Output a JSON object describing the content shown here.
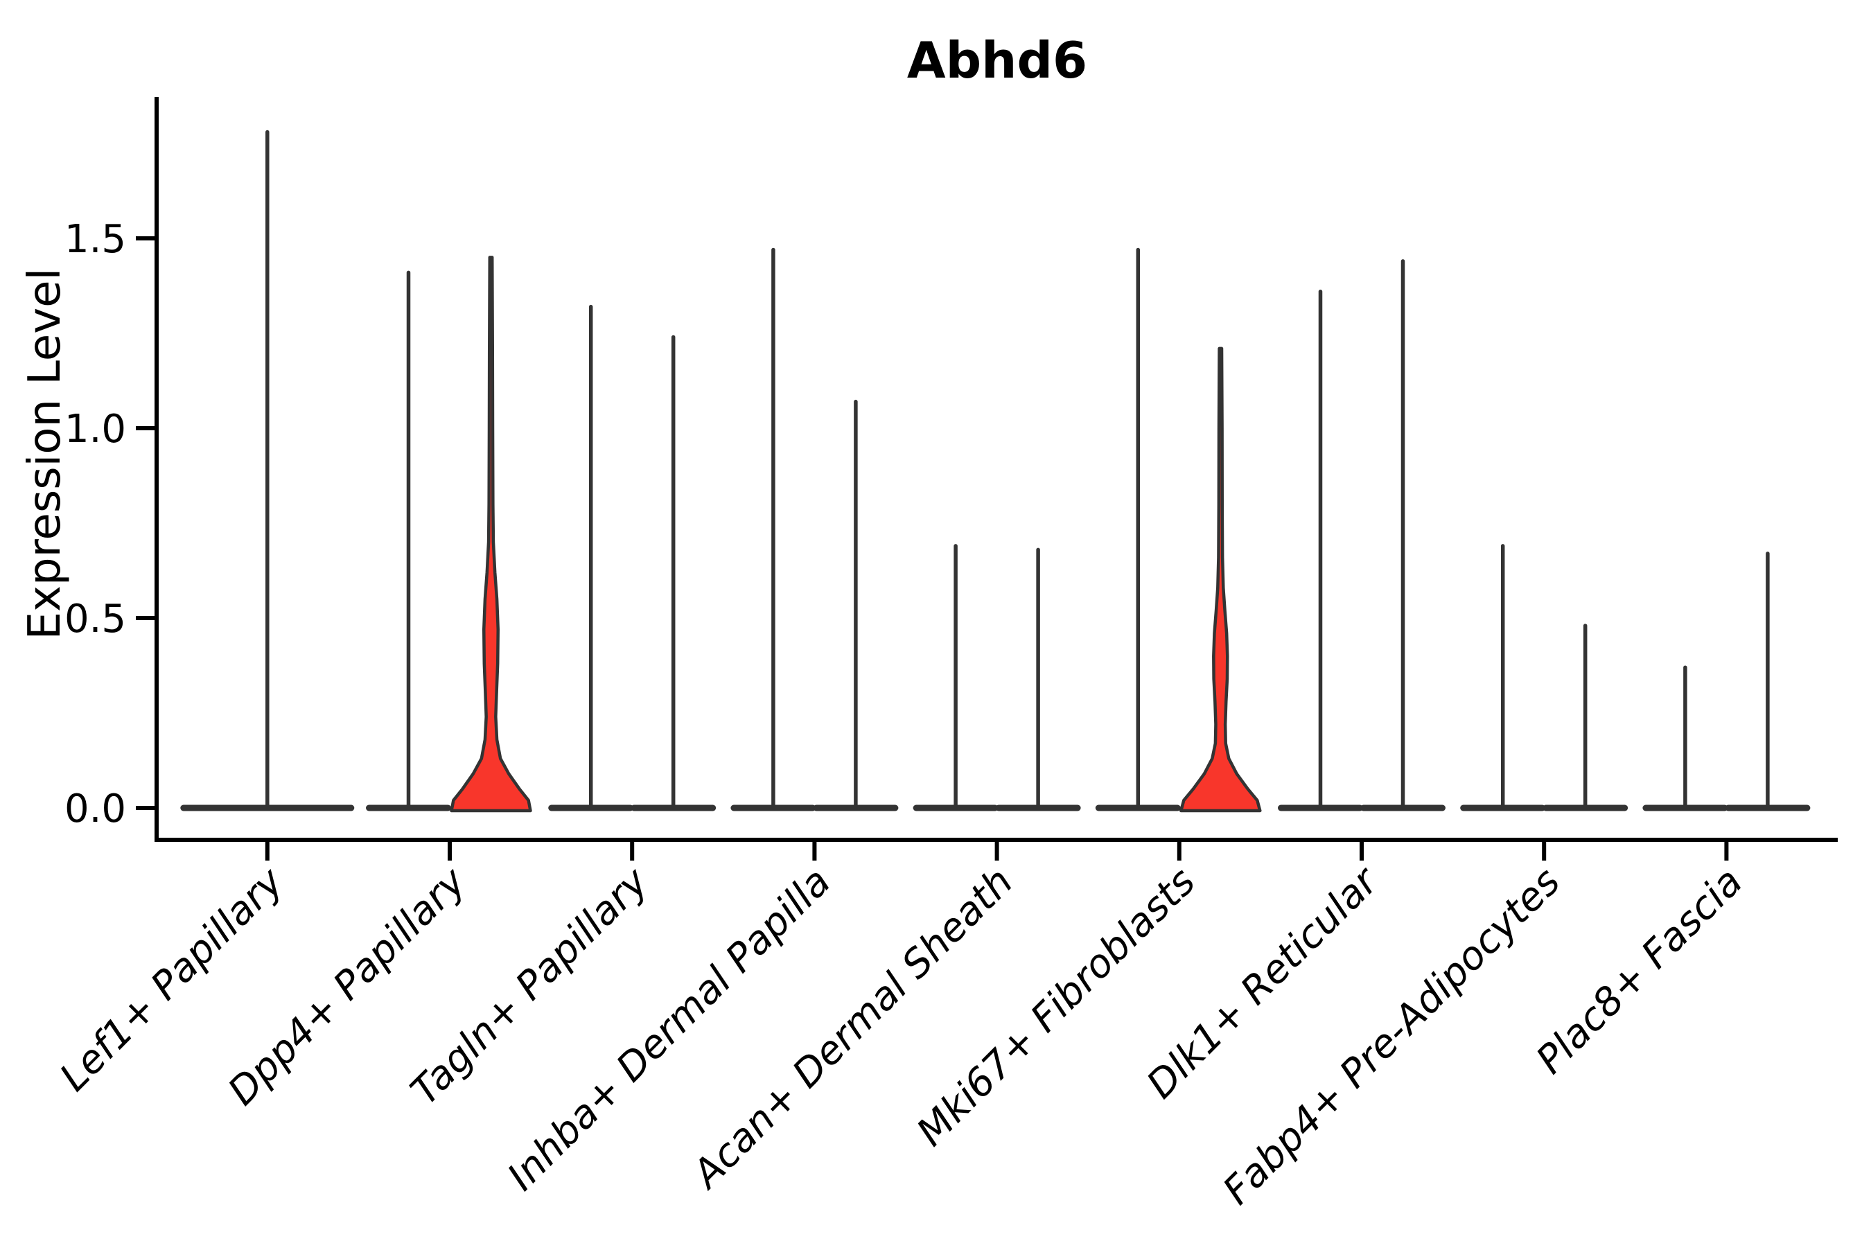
{
  "chart_data": {
    "type": "violin",
    "title": "Abhd6",
    "ylabel": "Expression Level",
    "y_axis": {
      "ticks": [
        {
          "value": 0.0,
          "label": "0.0"
        },
        {
          "value": 0.5,
          "label": "0.5"
        },
        {
          "value": 1.0,
          "label": "1.0"
        },
        {
          "value": 1.5,
          "label": "1.5"
        }
      ],
      "ylim": [
        -0.08,
        1.87
      ],
      "grid": false
    },
    "x_axis": {
      "label_rotation_deg": 45,
      "labels_italic": true
    },
    "legend": "none",
    "colors": {
      "violin_fill": "#F8362B",
      "violin_outline": "#333333",
      "axis": "#000000"
    },
    "categories": [
      {
        "label": "Lef1+ Papillary",
        "violins": [
          {
            "peak": 1.78,
            "style": "spike",
            "width": "full"
          }
        ]
      },
      {
        "label": "Dpp4+ Papillary",
        "violins": [
          {
            "peak": 1.41,
            "style": "spike",
            "width": "half"
          },
          {
            "peak": 1.45,
            "style": "bulge",
            "width": "half",
            "profile": [
              [
                0.0,
                1.0
              ],
              [
                0.02,
                0.95
              ],
              [
                0.05,
                0.72
              ],
              [
                0.09,
                0.45
              ],
              [
                0.13,
                0.24
              ],
              [
                0.18,
                0.15
              ],
              [
                0.24,
                0.12
              ],
              [
                0.3,
                0.14
              ],
              [
                0.38,
                0.17
              ],
              [
                0.47,
                0.18
              ],
              [
                0.55,
                0.15
              ],
              [
                0.62,
                0.1
              ],
              [
                0.7,
                0.06
              ],
              [
                0.8,
                0.05
              ],
              [
                1.0,
                0.044
              ],
              [
                1.2,
                0.04
              ],
              [
                1.45,
                0.03
              ]
            ]
          }
        ]
      },
      {
        "label": "Tagln+ Papillary",
        "violins": [
          {
            "peak": 1.32,
            "style": "spike",
            "width": "half"
          },
          {
            "peak": 1.24,
            "style": "spike",
            "width": "half"
          }
        ]
      },
      {
        "label": "Inhba+ Dermal Papilla",
        "violins": [
          {
            "peak": 1.47,
            "style": "spike",
            "width": "half"
          },
          {
            "peak": 1.07,
            "style": "spike",
            "width": "half"
          }
        ]
      },
      {
        "label": "Acan+ Dermal Sheath",
        "violins": [
          {
            "peak": 0.69,
            "style": "spike",
            "width": "half"
          },
          {
            "peak": 0.68,
            "style": "spike",
            "width": "half"
          }
        ]
      },
      {
        "label": "Mki67+ Fibroblasts",
        "violins": [
          {
            "peak": 1.47,
            "style": "spike",
            "width": "half"
          },
          {
            "peak": 1.21,
            "style": "bulge",
            "width": "half",
            "profile": [
              [
                0.0,
                1.0
              ],
              [
                0.02,
                0.93
              ],
              [
                0.05,
                0.69
              ],
              [
                0.09,
                0.41
              ],
              [
                0.13,
                0.21
              ],
              [
                0.17,
                0.13
              ],
              [
                0.22,
                0.12
              ],
              [
                0.28,
                0.14
              ],
              [
                0.34,
                0.17
              ],
              [
                0.4,
                0.175
              ],
              [
                0.46,
                0.155
              ],
              [
                0.52,
                0.11
              ],
              [
                0.58,
                0.07
              ],
              [
                0.66,
                0.05
              ],
              [
                0.8,
                0.043
              ],
              [
                1.0,
                0.04
              ],
              [
                1.21,
                0.03
              ]
            ]
          }
        ]
      },
      {
        "label": "Dlk1+ Reticular",
        "violins": [
          {
            "peak": 1.36,
            "style": "spike",
            "width": "half"
          },
          {
            "peak": 1.44,
            "style": "spike",
            "width": "half"
          }
        ]
      },
      {
        "label": "Fabp4+ Pre-Adipocytes",
        "violins": [
          {
            "peak": 0.69,
            "style": "spike",
            "width": "half"
          },
          {
            "peak": 0.48,
            "style": "spike",
            "width": "half"
          }
        ]
      },
      {
        "label": "Plac8+ Fascia",
        "violins": [
          {
            "peak": 0.37,
            "style": "spike",
            "width": "half"
          },
          {
            "peak": 0.67,
            "style": "spike",
            "width": "half"
          }
        ]
      }
    ]
  }
}
